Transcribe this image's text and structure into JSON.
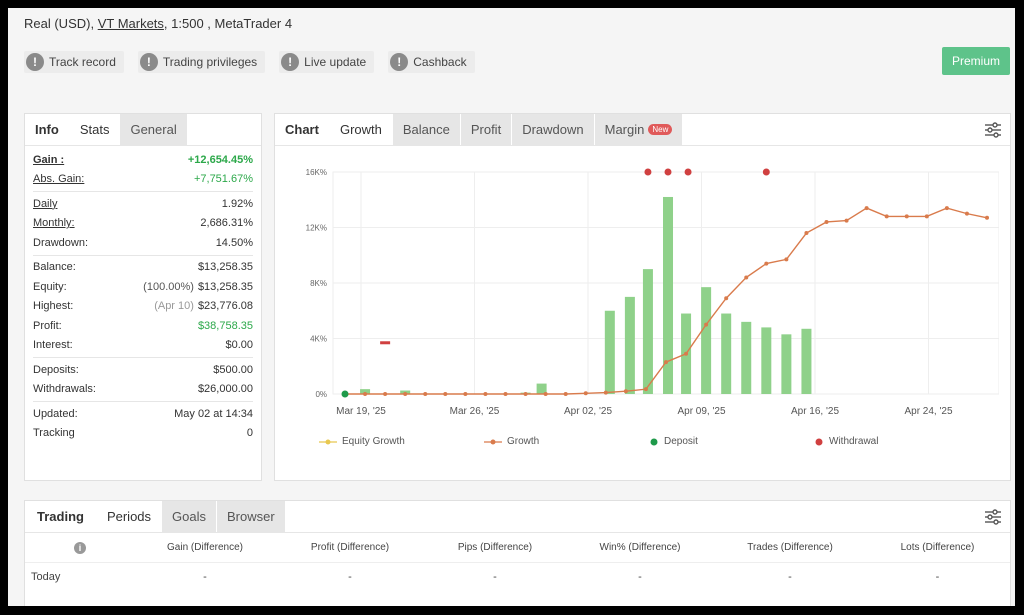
{
  "account": {
    "type": "Real (USD),",
    "broker": "VT Markets",
    "details": ", 1:500 , MetaTrader 4"
  },
  "badges": [
    "Track record",
    "Trading privileges",
    "Live update",
    "Cashback"
  ],
  "premium_label": "Premium",
  "info_tabs": [
    "Info",
    "Stats",
    "General"
  ],
  "info": {
    "gain": {
      "label": "Gain :",
      "value": "+12,654.45%"
    },
    "abs_gain": {
      "label": "Abs. Gain:",
      "value": "+7,751.67%"
    },
    "daily": {
      "label": "Daily",
      "value": "1.92%"
    },
    "monthly": {
      "label": "Monthly:",
      "value": "2,686.31%"
    },
    "drawdown": {
      "label": "Drawdown:",
      "value": "14.50%"
    },
    "balance": {
      "label": "Balance:",
      "value": "$13,258.35"
    },
    "equity": {
      "label": "Equity:",
      "note": "(100.00%)",
      "value": "$13,258.35"
    },
    "highest": {
      "label": "Highest:",
      "note": "(Apr 10)",
      "value": "$23,776.08"
    },
    "profit": {
      "label": "Profit:",
      "value": "$38,758.35"
    },
    "interest": {
      "label": "Interest:",
      "value": "$0.00"
    },
    "deposits": {
      "label": "Deposits:",
      "value": "$500.00"
    },
    "withdrawals": {
      "label": "Withdrawals:",
      "value": "$26,000.00"
    },
    "updated": {
      "label": "Updated:",
      "value": "May 02 at 14:34"
    },
    "tracking": {
      "label": "Tracking",
      "value": "0"
    }
  },
  "chart_tabs": {
    "title": "Chart",
    "items": [
      "Growth",
      "Balance",
      "Profit",
      "Drawdown",
      "Margin"
    ],
    "new_label": "New"
  },
  "chart_data": {
    "type": "line",
    "ylim": [
      0,
      16
    ],
    "y_ticks": [
      "0%",
      "4K%",
      "8K%",
      "12K%",
      "16K%"
    ],
    "x_ticks": [
      "Mar 19, '25",
      "Mar 26, '25",
      "Apr 02, '25",
      "Apr 09, '25",
      "Apr 16, '25",
      "Apr 24, '25"
    ],
    "legend": [
      "Equity Growth",
      "Growth",
      "Deposit",
      "Withdrawal"
    ],
    "growth": [
      0,
      0,
      0,
      0,
      0,
      0,
      0,
      0,
      0,
      0,
      0,
      0,
      0.05,
      0.1,
      0.2,
      0.35,
      2.3,
      2.9,
      5.0,
      6.9,
      8.4,
      9.4,
      9.7,
      11.6,
      12.4,
      12.5,
      13.4,
      12.8,
      12.8,
      12.8,
      13.4,
      13.0,
      12.7
    ],
    "bars_up": [
      [
        1,
        0.35
      ],
      [
        3,
        0.25
      ],
      [
        9,
        0.1
      ],
      [
        9.8,
        0.75
      ],
      [
        13.2,
        6.0
      ],
      [
        14.2,
        7.0
      ],
      [
        15.1,
        9.0
      ],
      [
        16.1,
        14.2
      ],
      [
        17.0,
        5.8
      ],
      [
        18.0,
        7.7
      ],
      [
        19.0,
        5.8
      ],
      [
        20.0,
        5.2
      ],
      [
        21.0,
        4.8
      ],
      [
        22.0,
        4.3
      ],
      [
        23.0,
        4.7
      ]
    ],
    "bars_down": [
      [
        2,
        3.8
      ]
    ],
    "withdrawals_x": [
      15.1,
      16.1,
      17.1,
      21
    ]
  },
  "periods_tabs": [
    "Trading",
    "Periods",
    "Goals",
    "Browser"
  ],
  "periods": {
    "headers": [
      "Gain (Difference)",
      "Profit (Difference)",
      "Pips (Difference)",
      "Win% (Difference)",
      "Trades (Difference)",
      "Lots (Difference)"
    ],
    "row_label": "Today",
    "row_values": [
      "-",
      "-",
      "-",
      "-",
      "-",
      "-"
    ]
  }
}
